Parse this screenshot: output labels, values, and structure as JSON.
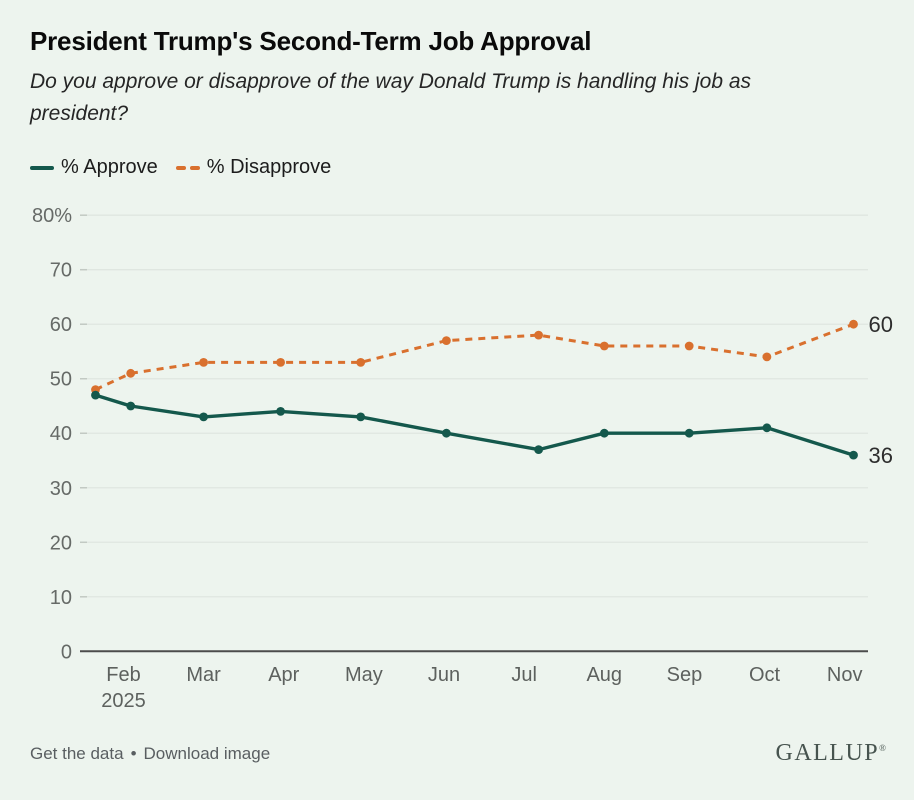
{
  "header": {
    "title": "President Trump's Second-Term Job Approval",
    "subtitle": "Do you approve or disapprove of the way Donald Trump is handling his job as president?"
  },
  "chart_data": {
    "type": "line",
    "title": "President Trump's Second-Term Job Approval",
    "xlabel": "",
    "ylabel": "",
    "ylim": [
      0,
      80
    ],
    "grid": true,
    "legend_position": "top-left",
    "x_axis": {
      "tick_labels": [
        "Feb",
        "Mar",
        "Apr",
        "May",
        "Jun",
        "Jul",
        "Aug",
        "Sep",
        "Oct",
        "Nov"
      ],
      "year_sublabel": "2025",
      "year_sublabel_under_index": 0
    },
    "y_axis": {
      "ticks": [
        0,
        10,
        20,
        30,
        40,
        50,
        60,
        70,
        80
      ],
      "tick_labels": [
        "0",
        "10",
        "20",
        "30",
        "40",
        "50",
        "60",
        "70",
        "80%"
      ]
    },
    "x_months_feb1": [
      0.65,
      1.09,
      2.0,
      2.96,
      3.96,
      5.03,
      6.18,
      7.0,
      8.06,
      9.03,
      10.11
    ],
    "series": [
      {
        "name": "% Disapprove",
        "style": "dashed",
        "color": "#d9702e",
        "values": [
          48,
          51,
          53,
          53,
          53,
          57,
          58,
          56,
          56,
          54,
          60
        ],
        "end_label": "60"
      },
      {
        "name": "% Approve",
        "style": "solid",
        "color": "#14584c",
        "values": [
          47,
          45,
          43,
          44,
          43,
          40,
          37,
          40,
          40,
          41,
          36
        ],
        "end_label": "36"
      }
    ]
  },
  "footer": {
    "link_get_data": "Get the data",
    "separator": "•",
    "link_download": "Download image",
    "logo": "GALLUP",
    "logo_mark": "®"
  },
  "colors": {
    "background": "#edf4ee",
    "approve": "#14584c",
    "disapprove": "#d9702e",
    "gridline": "#dfe6e0",
    "axis_line": "#4c4c4c",
    "tick_text": "#666a67",
    "end_label_text": "#2d2d2d"
  }
}
